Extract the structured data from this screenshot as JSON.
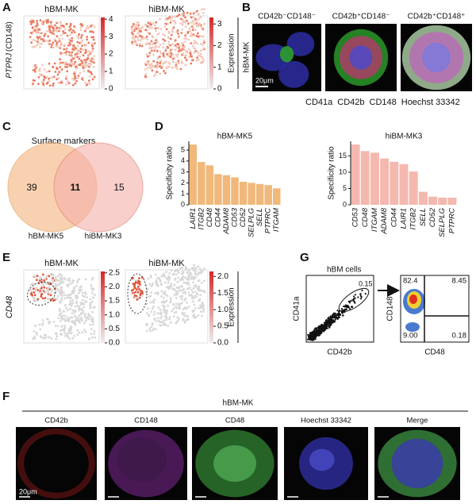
{
  "panels": {
    "a": {
      "label": "A",
      "titles": [
        "hBM-MK",
        "hiBM-MK"
      ],
      "gene": "PTPRJ",
      "protein": "(CD148)",
      "colorbar_left": [
        "0",
        "1",
        "2",
        "3",
        "4"
      ],
      "colorbar_right": [
        "0",
        "1",
        "2",
        "3"
      ],
      "legend_title": "Expression"
    },
    "b": {
      "label": "B",
      "titles": [
        "CD42b⁻CD148⁻",
        "CD42b⁺CD148⁻",
        "CD42b⁺CD148⁺"
      ],
      "row_label": "hBM-MK",
      "scale": "20μm",
      "stains": [
        {
          "name": "CD41a",
          "color": "#2ca02c"
        },
        {
          "name": "CD42b",
          "color": "#e3261c"
        },
        {
          "name": "CD148",
          "color": "#c23bc2"
        },
        {
          "name": "Hoechst 33342",
          "color": "#3a3ad0"
        }
      ]
    },
    "c": {
      "label": "C",
      "title": "Surface markers",
      "left_only": "39",
      "both": "11",
      "right_only": "15",
      "sets": [
        "hBM-MK5",
        "hiBM-MK3"
      ]
    },
    "d": {
      "label": "D"
    },
    "e": {
      "label": "E",
      "titles": [
        "hBM-MK",
        "hiBM-MK"
      ],
      "gene": "CD48",
      "colorbar_left": [
        "0.0",
        "0.5",
        "1.0",
        "1.5",
        "2.0",
        "2.5"
      ],
      "colorbar_right": [
        "0.0",
        "0.5",
        "1.0",
        "1.5",
        "2.0"
      ],
      "legend_title": "Expression"
    },
    "g": {
      "label": "G",
      "title": "hBM cells",
      "left_y": "CD41a",
      "left_x": "CD42b",
      "gate": "0.15",
      "right_y": "CD148",
      "right_x": "CD48",
      "quadrants": [
        "82.4",
        "8.45",
        "9.00",
        "0.18"
      ]
    },
    "f": {
      "label": "F",
      "title": "hBM-MK",
      "scale": "20μm",
      "channels": [
        {
          "name": "CD42b",
          "color": "#e3261c"
        },
        {
          "name": "CD148",
          "color": "#c23bc2"
        },
        {
          "name": "CD48",
          "color": "#2ca02c"
        },
        {
          "name": "Hoechst 33342",
          "color": "#3a3ad0"
        },
        {
          "name": "Merge",
          "color": "#111111"
        }
      ]
    }
  },
  "chart_data": [
    {
      "type": "bar",
      "title": "hBM-MK5",
      "y_label": "Specificity ratio",
      "categories": [
        "LAIR1",
        "ITGB2",
        "CD48",
        "CD44",
        "ADAM8",
        "CD53",
        "CD52",
        "SELPLG",
        "SELL",
        "PTPRC",
        "ITGAM"
      ],
      "values": [
        5.5,
        3.9,
        3.6,
        2.8,
        2.7,
        2.5,
        2.1,
        2.0,
        1.9,
        1.8,
        1.5
      ],
      "color": "#f0b87a",
      "highlight_index": 2,
      "highlight_color": "#d62728",
      "ylim": [
        0,
        5.8
      ],
      "yticks": [
        0,
        1,
        2,
        3,
        4,
        5
      ]
    },
    {
      "type": "bar",
      "title": "hiBM-MK3",
      "y_label": "Specificity ratio",
      "categories": [
        "CD53",
        "CD48",
        "ITGAM",
        "ADAM8",
        "CD44",
        "LAIR1",
        "ITGB2",
        "SELL",
        "CD52",
        "SELPLG",
        "PTPRC"
      ],
      "values": [
        18.5,
        16.5,
        16.0,
        14.2,
        13.2,
        12.5,
        10.2,
        4.0,
        2.5,
        2.2,
        2.2
      ],
      "color": "#f4b8ae",
      "highlight_index": 1,
      "highlight_color": "#d62728",
      "ylim": [
        0,
        19.5
      ],
      "yticks": [
        0,
        5,
        10,
        15
      ]
    }
  ]
}
